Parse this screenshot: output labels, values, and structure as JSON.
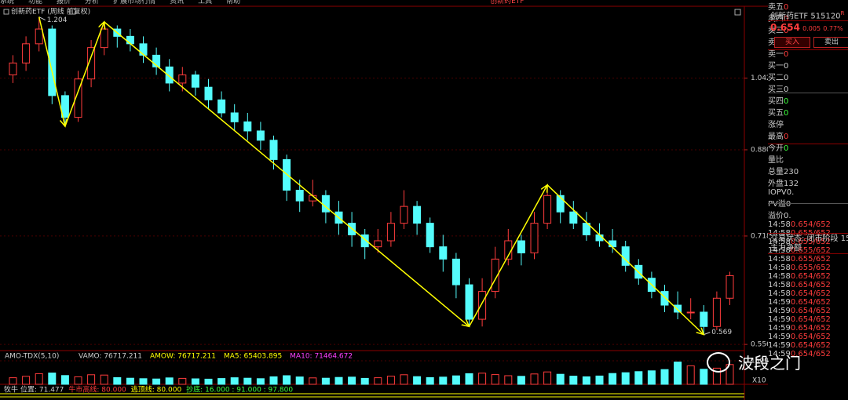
{
  "menu": [
    "系统",
    "功能",
    "报价",
    "分析",
    "扩展市场行情",
    "资讯",
    "工具",
    "帮助",
    "创新药ETF"
  ],
  "chart": {
    "title": "创新药ETF (周线 前复权)",
    "ylim": [
      0.55,
      1.23
    ],
    "log_scale": true,
    "yticks": [
      1.042,
      {
        "value": 0.88,
        "label": "0.880"
      },
      0.718,
      0.556
    ],
    "up_color": "#ff3c3c",
    "down_color": "#54fcfc",
    "trend_color": "#ffff00",
    "candles": [
      [
        1.05,
        1.1,
        1.03,
        1.08
      ],
      [
        1.08,
        1.15,
        1.06,
        1.13
      ],
      [
        1.13,
        1.204,
        1.11,
        1.17
      ],
      [
        1.17,
        1.18,
        0.98,
        1.0
      ],
      [
        1.0,
        1.01,
        0.93,
        0.95
      ],
      [
        0.95,
        1.06,
        0.94,
        1.04
      ],
      [
        1.04,
        1.14,
        1.02,
        1.12
      ],
      [
        1.12,
        1.19,
        1.1,
        1.17
      ],
      [
        1.17,
        1.18,
        1.12,
        1.15
      ],
      [
        1.15,
        1.17,
        1.11,
        1.13
      ],
      [
        1.13,
        1.15,
        1.08,
        1.1
      ],
      [
        1.1,
        1.12,
        1.05,
        1.07
      ],
      [
        1.07,
        1.09,
        1.01,
        1.03
      ],
      [
        1.03,
        1.07,
        1.01,
        1.05
      ],
      [
        1.05,
        1.06,
        1.0,
        1.02
      ],
      [
        1.02,
        1.04,
        0.97,
        0.99
      ],
      [
        0.99,
        1.01,
        0.95,
        0.96
      ],
      [
        0.96,
        0.98,
        0.92,
        0.94
      ],
      [
        0.94,
        0.96,
        0.9,
        0.92
      ],
      [
        0.92,
        0.94,
        0.88,
        0.9
      ],
      [
        0.9,
        0.91,
        0.84,
        0.86
      ],
      [
        0.86,
        0.87,
        0.78,
        0.8
      ],
      [
        0.8,
        0.82,
        0.76,
        0.78
      ],
      [
        0.78,
        0.82,
        0.77,
        0.79
      ],
      [
        0.79,
        0.8,
        0.74,
        0.76
      ],
      [
        0.76,
        0.78,
        0.72,
        0.74
      ],
      [
        0.74,
        0.76,
        0.7,
        0.72
      ],
      [
        0.72,
        0.73,
        0.68,
        0.7
      ],
      [
        0.7,
        0.73,
        0.69,
        0.71
      ],
      [
        0.71,
        0.76,
        0.7,
        0.74
      ],
      [
        0.74,
        0.8,
        0.73,
        0.77
      ],
      [
        0.77,
        0.78,
        0.72,
        0.74
      ],
      [
        0.74,
        0.75,
        0.69,
        0.7
      ],
      [
        0.7,
        0.72,
        0.66,
        0.68
      ],
      [
        0.68,
        0.69,
        0.62,
        0.64
      ],
      [
        0.64,
        0.65,
        0.58,
        0.59
      ],
      [
        0.59,
        0.65,
        0.58,
        0.63
      ],
      [
        0.63,
        0.7,
        0.62,
        0.68
      ],
      [
        0.68,
        0.73,
        0.67,
        0.71
      ],
      [
        0.71,
        0.72,
        0.67,
        0.69
      ],
      [
        0.69,
        0.76,
        0.68,
        0.74
      ],
      [
        0.74,
        0.81,
        0.73,
        0.79
      ],
      [
        0.79,
        0.8,
        0.74,
        0.76
      ],
      [
        0.76,
        0.78,
        0.73,
        0.74
      ],
      [
        0.74,
        0.76,
        0.71,
        0.72
      ],
      [
        0.72,
        0.74,
        0.7,
        0.71
      ],
      [
        0.71,
        0.73,
        0.69,
        0.7
      ],
      [
        0.7,
        0.71,
        0.66,
        0.67
      ],
      [
        0.67,
        0.68,
        0.64,
        0.65
      ],
      [
        0.65,
        0.66,
        0.62,
        0.63
      ],
      [
        0.63,
        0.64,
        0.6,
        0.61
      ],
      [
        0.61,
        0.63,
        0.59,
        0.6
      ],
      [
        0.6,
        0.62,
        0.59,
        0.6
      ],
      [
        0.6,
        0.61,
        0.569,
        0.58
      ],
      [
        0.58,
        0.63,
        0.575,
        0.62
      ],
      [
        0.62,
        0.66,
        0.61,
        0.654
      ]
    ]
  },
  "volume": {
    "indicator": "AMO-TDX(5,10)",
    "readouts": [
      "VAMO: 76717.211",
      "AMOW: 76717.211",
      "MA5: 65403.895",
      "MA10: 71464.672"
    ],
    "ylim": [
      0,
      16500
    ],
    "yticks": [
      15000
    ],
    "unit": "X10",
    "values": [
      4200,
      5100,
      6800,
      7200,
      5600,
      4800,
      6100,
      5900,
      4300,
      3900,
      3600,
      3400,
      4100,
      3800,
      3500,
      3300,
      3700,
      4200,
      3900,
      3600,
      4800,
      5500,
      4700,
      4100,
      3900,
      4400,
      4600,
      3800,
      4200,
      5200,
      6100,
      4900,
      4300,
      4600,
      5400,
      6800,
      7100,
      6200,
      5500,
      5100,
      6600,
      7900,
      6400,
      5200,
      4800,
      5300,
      6900,
      7400,
      8100,
      8600,
      9400,
      14200,
      11800,
      9600,
      10300,
      12600
    ]
  },
  "bottom_indicator": {
    "name": "牧牛",
    "readouts": [
      "位置: 71.477",
      "牛市高线: 80.000",
      "逃顶线: 80.000",
      "抄底: 16.000 : 91.000 : 97.800"
    ]
  },
  "quote": {
    "name": "创新药ETF",
    "code": "515120",
    "flag": "R",
    "price": "0.654",
    "change": "0.005",
    "pct": "0.77%",
    "buy": "买入",
    "sell": "卖出",
    "book": [
      {
        "label": "卖五",
        "value": "0"
      },
      {
        "label": "卖四",
        "value": "0"
      },
      {
        "label": "卖三",
        "value": "0"
      },
      {
        "label": "卖二",
        "value": "0"
      },
      {
        "label": "卖一",
        "value": "0"
      },
      {
        "label": "买一",
        "value": "0"
      },
      {
        "label": "买二",
        "value": "0"
      },
      {
        "label": "买三",
        "value": "0"
      },
      {
        "label": "买四",
        "value": "0"
      },
      {
        "label": "买五",
        "value": "0"
      }
    ],
    "stats": [
      {
        "label": "涨停"
      },
      {
        "label": "最高",
        "value": "0"
      },
      {
        "label": "今开",
        "value": "0"
      },
      {
        "label": "量比"
      },
      {
        "label": "总量",
        "value": "230"
      },
      {
        "label": "外盘",
        "value": "132"
      },
      {
        "label": "IOPV",
        "value": "0."
      },
      {
        "label": "PV溢",
        "value": "0"
      },
      {
        "label": "溢价",
        "value": "0."
      }
    ],
    "status": "交易状态: 闭市阶段 15",
    "flow": "主力净额",
    "ticks": [
      {
        "time": "14:58",
        "price": "0.654/652"
      },
      {
        "time": "14:58",
        "price": "0.655/652"
      },
      {
        "time": "14:58",
        "price": "0.655/652"
      },
      {
        "time": "14:58",
        "price": "0.655/652"
      },
      {
        "time": "14:58",
        "price": "0.655/652"
      },
      {
        "time": "14:58",
        "price": "0.655/652"
      },
      {
        "time": "14:58",
        "price": "0.654/652"
      },
      {
        "time": "14:58",
        "price": "0.654/652"
      },
      {
        "time": "14:58",
        "price": "0.654/652"
      },
      {
        "time": "14:59",
        "price": "0.654/652"
      },
      {
        "time": "14:59",
        "price": "0.654/652"
      },
      {
        "time": "14:59",
        "price": "0.654/652"
      },
      {
        "time": "14:59",
        "price": "0.654/652"
      },
      {
        "time": "14:59",
        "price": "0.654/652"
      },
      {
        "time": "14:59",
        "price": "0.654/652"
      },
      {
        "time": "14:59",
        "price": "0.654/652"
      }
    ]
  },
  "watermark": "波段之门"
}
